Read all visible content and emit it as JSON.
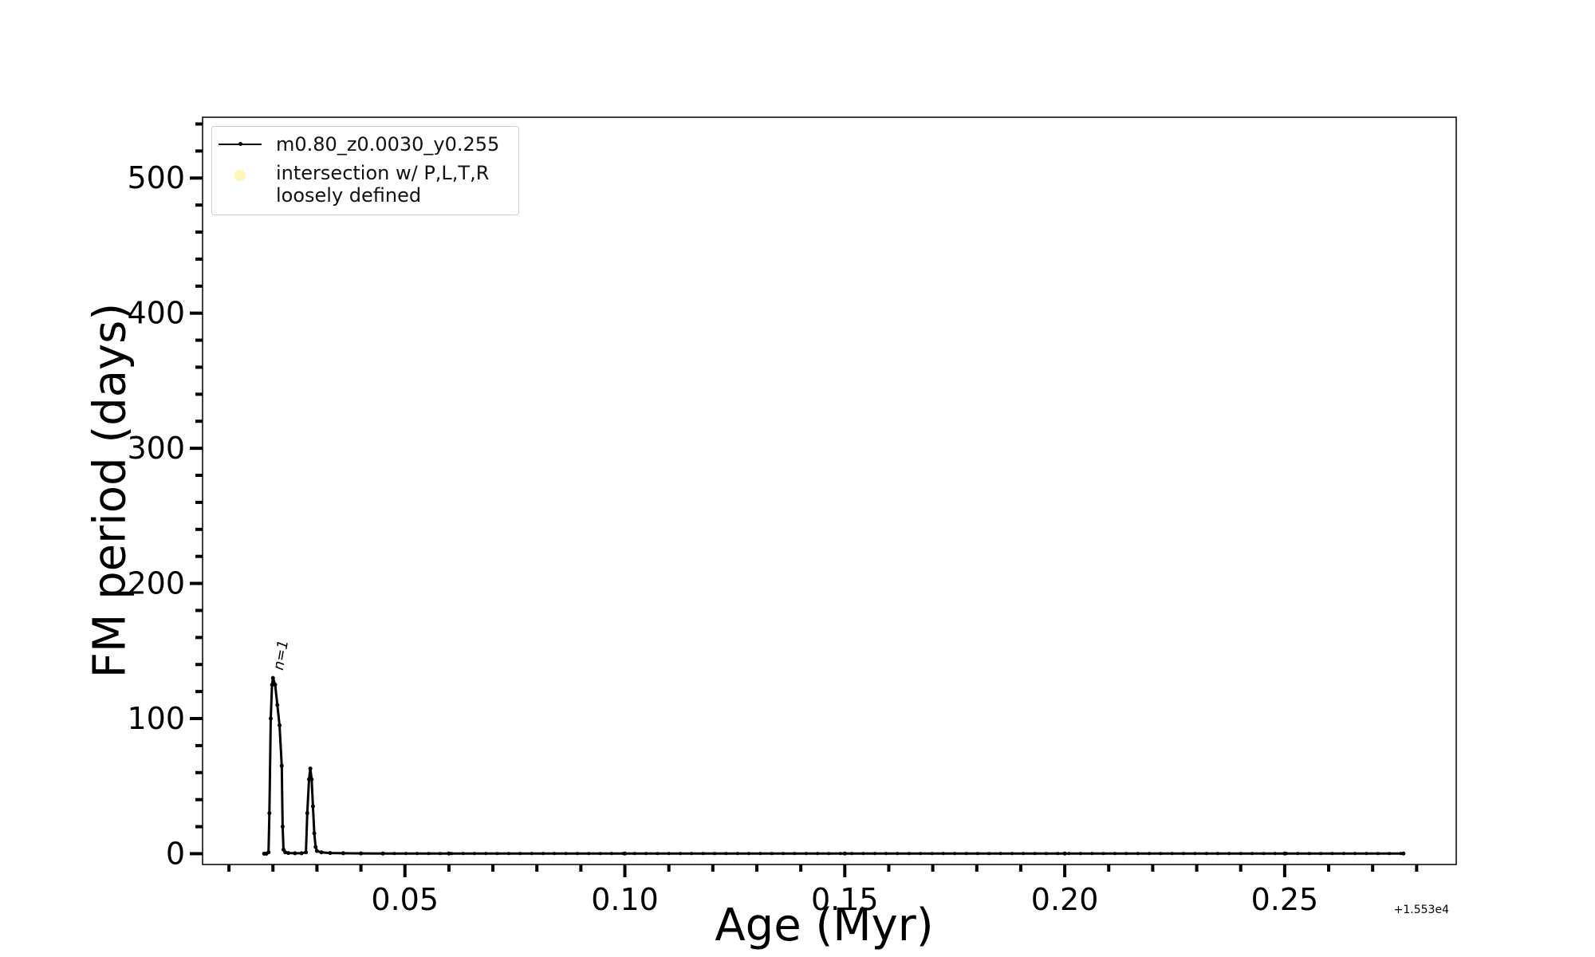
{
  "chart_data": {
    "type": "line",
    "title": "",
    "xlabel": "Age (Myr)",
    "ylabel": "FM period (days)",
    "x_offset_label": "+1.553e4",
    "xlim": [
      0.004,
      0.289
    ],
    "ylim": [
      -8,
      545
    ],
    "xticks": [
      0.05,
      0.1,
      0.15,
      0.2,
      0.25
    ],
    "xtick_labels": [
      "0.05",
      "0.10",
      "0.15",
      "0.20",
      "0.25"
    ],
    "yticks": [
      0,
      100,
      200,
      300,
      400,
      500
    ],
    "ytick_labels": [
      "0",
      "100",
      "200",
      "300",
      "400",
      "500"
    ],
    "legend_placement": "top-left",
    "grid": false,
    "series": [
      {
        "name": "m0.80_z0.0030_y0.255",
        "color": "#000000",
        "x": [
          0.018,
          0.0185,
          0.019,
          0.0192,
          0.0195,
          0.0198,
          0.02,
          0.0205,
          0.021,
          0.0215,
          0.022,
          0.0222,
          0.0224,
          0.0228,
          0.0235,
          0.025,
          0.0265,
          0.0275,
          0.0278,
          0.0282,
          0.0285,
          0.0288,
          0.0291,
          0.0294,
          0.0297,
          0.03,
          0.031,
          0.033,
          0.036,
          0.04,
          0.045,
          0.06,
          0.1,
          0.15,
          0.2,
          0.25,
          0.277
        ],
        "y": [
          0,
          0,
          1,
          30,
          100,
          125,
          130,
          125,
          110,
          95,
          65,
          20,
          3,
          1,
          0.5,
          0.3,
          0.3,
          1,
          30,
          55,
          63,
          55,
          35,
          15,
          5,
          2,
          1,
          0.5,
          0.3,
          0.2,
          0.1,
          0.1,
          0.1,
          0.1,
          0.1,
          0.1,
          0.1
        ]
      }
    ],
    "intersection_series": {
      "name": "intersection w/ P,L,T,R\nloosely defined",
      "color": "#fff7b3"
    },
    "annotations": [
      {
        "text": "n=1",
        "x": 0.0208,
        "y": 133
      }
    ]
  },
  "legend": {
    "entry_1": "m0.80_z0.0030_y0.255",
    "entry_2_line1": "intersection w/ P,L,T,R",
    "entry_2_line2": "loosely defined"
  }
}
